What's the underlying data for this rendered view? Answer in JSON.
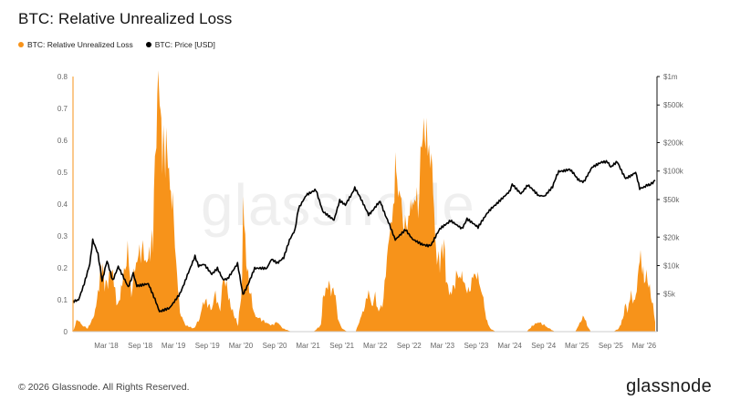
{
  "page": {
    "title": "BTC: Relative Unrealized Loss",
    "copyright": "© 2026 Glassnode. All Rights Reserved.",
    "brand": "glassnode",
    "watermark": "glassnode"
  },
  "colors": {
    "loss": "#f7931a",
    "price": "#000000",
    "axis": "#666666",
    "grid": "#e6e6e6"
  },
  "chart_data": {
    "type": "area",
    "title": "BTC: Relative Unrealized Loss",
    "legend_position": "top-left",
    "series": [
      {
        "name": "BTC: Relative Unrealized Loss",
        "axis": "left",
        "style": "area",
        "color": "#f7931a",
        "points": [
          [
            "2017-09-01",
            0.0
          ],
          [
            "2017-09-25",
            0.04
          ],
          [
            "2017-10-20",
            0.02
          ],
          [
            "2017-11-20",
            0.01
          ],
          [
            "2017-12-25",
            0.05
          ],
          [
            "2018-01-15",
            0.12
          ],
          [
            "2018-02-05",
            0.22
          ],
          [
            "2018-02-20",
            0.14
          ],
          [
            "2018-03-10",
            0.16
          ],
          [
            "2018-04-05",
            0.2
          ],
          [
            "2018-04-25",
            0.08
          ],
          [
            "2018-05-15",
            0.11
          ],
          [
            "2018-06-05",
            0.19
          ],
          [
            "2018-06-25",
            0.25
          ],
          [
            "2018-07-15",
            0.12
          ],
          [
            "2018-08-10",
            0.22
          ],
          [
            "2018-09-10",
            0.26
          ],
          [
            "2018-10-05",
            0.22
          ],
          [
            "2018-10-20",
            0.24
          ],
          [
            "2018-11-10",
            0.3
          ],
          [
            "2018-11-20",
            0.52
          ],
          [
            "2018-11-28",
            0.66
          ],
          [
            "2018-12-08",
            0.75
          ],
          [
            "2018-12-16",
            0.72
          ],
          [
            "2018-12-25",
            0.62
          ],
          [
            "2019-01-10",
            0.56
          ],
          [
            "2019-01-25",
            0.58
          ],
          [
            "2019-02-10",
            0.45
          ],
          [
            "2019-02-25",
            0.4
          ],
          [
            "2019-03-15",
            0.22
          ],
          [
            "2019-04-05",
            0.06
          ],
          [
            "2019-05-05",
            0.02
          ],
          [
            "2019-06-20",
            0.01
          ],
          [
            "2019-07-20",
            0.04
          ],
          [
            "2019-08-15",
            0.1
          ],
          [
            "2019-09-25",
            0.07
          ],
          [
            "2019-10-15",
            0.12
          ],
          [
            "2019-11-10",
            0.06
          ],
          [
            "2019-11-25",
            0.18
          ],
          [
            "2019-12-15",
            0.14
          ],
          [
            "2020-01-05",
            0.08
          ],
          [
            "2020-02-15",
            0.02
          ],
          [
            "2020-03-08",
            0.15
          ],
          [
            "2020-03-13",
            0.47
          ],
          [
            "2020-03-25",
            0.26
          ],
          [
            "2020-04-15",
            0.14
          ],
          [
            "2020-05-15",
            0.05
          ],
          [
            "2020-06-15",
            0.04
          ],
          [
            "2020-07-10",
            0.03
          ],
          [
            "2020-08-15",
            0.02
          ],
          [
            "2020-09-15",
            0.03
          ],
          [
            "2020-10-15",
            0.01
          ],
          [
            "2020-12-01",
            0.0
          ],
          [
            "2021-04-01",
            0.0
          ],
          [
            "2021-05-10",
            0.02
          ],
          [
            "2021-05-20",
            0.1
          ],
          [
            "2021-06-05",
            0.13
          ],
          [
            "2021-06-22",
            0.15
          ],
          [
            "2021-07-10",
            0.12
          ],
          [
            "2021-07-22",
            0.14
          ],
          [
            "2021-08-10",
            0.04
          ],
          [
            "2021-09-01",
            0.01
          ],
          [
            "2021-10-01",
            0.0
          ],
          [
            "2021-11-15",
            0.0
          ],
          [
            "2021-12-10",
            0.04
          ],
          [
            "2022-01-10",
            0.09
          ],
          [
            "2022-01-24",
            0.13
          ],
          [
            "2022-02-10",
            0.08
          ],
          [
            "2022-03-01",
            0.11
          ],
          [
            "2022-03-20",
            0.06
          ],
          [
            "2022-04-15",
            0.1
          ],
          [
            "2022-05-10",
            0.28
          ],
          [
            "2022-05-25",
            0.32
          ],
          [
            "2022-06-13",
            0.44
          ],
          [
            "2022-06-18",
            0.54
          ],
          [
            "2022-06-28",
            0.46
          ],
          [
            "2022-07-15",
            0.42
          ],
          [
            "2022-08-10",
            0.32
          ],
          [
            "2022-09-10",
            0.38
          ],
          [
            "2022-09-25",
            0.42
          ],
          [
            "2022-10-20",
            0.4
          ],
          [
            "2022-11-09",
            0.58
          ],
          [
            "2022-11-20",
            0.65
          ],
          [
            "2022-12-05",
            0.58
          ],
          [
            "2022-12-25",
            0.58
          ],
          [
            "2023-01-10",
            0.46
          ],
          [
            "2023-01-25",
            0.24
          ],
          [
            "2023-02-15",
            0.22
          ],
          [
            "2023-03-10",
            0.28
          ],
          [
            "2023-03-25",
            0.14
          ],
          [
            "2023-04-20",
            0.12
          ],
          [
            "2023-05-15",
            0.17
          ],
          [
            "2023-06-10",
            0.18
          ],
          [
            "2023-07-01",
            0.15
          ],
          [
            "2023-07-20",
            0.12
          ],
          [
            "2023-08-20",
            0.18
          ],
          [
            "2023-09-10",
            0.17
          ],
          [
            "2023-10-10",
            0.1
          ],
          [
            "2023-10-25",
            0.04
          ],
          [
            "2023-11-15",
            0.01
          ],
          [
            "2023-12-15",
            0.0
          ],
          [
            "2024-06-01",
            0.0
          ],
          [
            "2024-07-05",
            0.02
          ],
          [
            "2024-08-05",
            0.03
          ],
          [
            "2024-09-05",
            0.02
          ],
          [
            "2024-10-01",
            0.01
          ],
          [
            "2024-11-01",
            0.0
          ],
          [
            "2025-02-20",
            0.0
          ],
          [
            "2025-03-10",
            0.02
          ],
          [
            "2025-04-08",
            0.05
          ],
          [
            "2025-04-25",
            0.02
          ],
          [
            "2025-05-15",
            0.0
          ],
          [
            "2025-09-15",
            0.0
          ],
          [
            "2025-10-15",
            0.01
          ],
          [
            "2025-11-05",
            0.04
          ],
          [
            "2025-11-21",
            0.09
          ],
          [
            "2025-12-01",
            0.06
          ],
          [
            "2025-12-15",
            0.12
          ],
          [
            "2026-01-05",
            0.09
          ],
          [
            "2026-01-20",
            0.13
          ],
          [
            "2026-02-05",
            0.24
          ],
          [
            "2026-02-20",
            0.2
          ],
          [
            "2026-03-01",
            0.16
          ],
          [
            "2026-03-20",
            0.17
          ],
          [
            "2026-04-01",
            0.13
          ],
          [
            "2026-04-18",
            0.08
          ],
          [
            "2026-04-30",
            0.03
          ]
        ]
      },
      {
        "name": "BTC: Price [USD]",
        "axis": "right",
        "style": "line",
        "color": "#000000",
        "points": [
          [
            "2017-09-01",
            4200
          ],
          [
            "2017-10-01",
            4400
          ],
          [
            "2017-11-01",
            6500
          ],
          [
            "2017-12-01",
            10500
          ],
          [
            "2017-12-17",
            18500
          ],
          [
            "2018-01-15",
            13000
          ],
          [
            "2018-02-06",
            7000
          ],
          [
            "2018-03-05",
            11000
          ],
          [
            "2018-04-05",
            6800
          ],
          [
            "2018-05-05",
            9600
          ],
          [
            "2018-06-28",
            5900
          ],
          [
            "2018-07-25",
            8300
          ],
          [
            "2018-08-14",
            6200
          ],
          [
            "2018-10-15",
            6500
          ],
          [
            "2018-11-20",
            4500
          ],
          [
            "2018-12-15",
            3300
          ],
          [
            "2019-02-08",
            3600
          ],
          [
            "2019-04-05",
            5000
          ],
          [
            "2019-05-15",
            8000
          ],
          [
            "2019-06-26",
            12500
          ],
          [
            "2019-07-15",
            10000
          ],
          [
            "2019-08-15",
            10500
          ],
          [
            "2019-09-25",
            8000
          ],
          [
            "2019-10-26",
            9300
          ],
          [
            "2019-11-25",
            7000
          ],
          [
            "2019-12-20",
            7200
          ],
          [
            "2020-02-12",
            10300
          ],
          [
            "2020-03-12",
            4900
          ],
          [
            "2020-04-15",
            6800
          ],
          [
            "2020-05-15",
            9400
          ],
          [
            "2020-07-20",
            9200
          ],
          [
            "2020-08-15",
            11800
          ],
          [
            "2020-09-15",
            10800
          ],
          [
            "2020-10-20",
            12000
          ],
          [
            "2020-11-20",
            18500
          ],
          [
            "2020-12-20",
            23500
          ],
          [
            "2021-01-08",
            40000
          ],
          [
            "2021-02-20",
            56000
          ],
          [
            "2021-03-15",
            58000
          ],
          [
            "2021-04-13",
            63000
          ],
          [
            "2021-05-20",
            37000
          ],
          [
            "2021-07-20",
            30000
          ],
          [
            "2021-08-20",
            48000
          ],
          [
            "2021-09-20",
            43000
          ],
          [
            "2021-11-10",
            67000
          ],
          [
            "2021-12-20",
            47000
          ],
          [
            "2022-01-24",
            35000
          ],
          [
            "2022-03-28",
            47000
          ],
          [
            "2022-05-12",
            29000
          ],
          [
            "2022-06-18",
            19000
          ],
          [
            "2022-08-13",
            24500
          ],
          [
            "2022-09-20",
            19000
          ],
          [
            "2022-11-09",
            16500
          ],
          [
            "2022-12-30",
            16600
          ],
          [
            "2023-02-15",
            24000
          ],
          [
            "2023-04-14",
            30500
          ],
          [
            "2023-06-15",
            25000
          ],
          [
            "2023-07-13",
            31000
          ],
          [
            "2023-09-11",
            25000
          ],
          [
            "2023-10-25",
            34500
          ],
          [
            "2023-12-10",
            43000
          ],
          [
            "2024-02-28",
            60000
          ],
          [
            "2024-03-14",
            73000
          ],
          [
            "2024-05-01",
            57000
          ],
          [
            "2024-06-07",
            71000
          ],
          [
            "2024-08-05",
            54000
          ],
          [
            "2024-09-06",
            53500
          ],
          [
            "2024-10-20",
            69000
          ],
          [
            "2024-11-22",
            99000
          ],
          [
            "2025-01-20",
            106000
          ],
          [
            "2025-02-28",
            84000
          ],
          [
            "2025-04-08",
            76500
          ],
          [
            "2025-05-22",
            111000
          ],
          [
            "2025-07-14",
            122000
          ],
          [
            "2025-08-14",
            124000
          ],
          [
            "2025-09-01",
            108000
          ],
          [
            "2025-10-06",
            125000
          ],
          [
            "2025-11-21",
            84000
          ],
          [
            "2025-12-20",
            88000
          ],
          [
            "2026-01-14",
            96000
          ],
          [
            "2026-02-05",
            65000
          ],
          [
            "2026-03-01",
            68000
          ],
          [
            "2026-03-20",
            71000
          ],
          [
            "2026-04-10",
            74000
          ],
          [
            "2026-04-30",
            80000
          ]
        ]
      }
    ],
    "left_axis": {
      "min": 0,
      "max": 0.8,
      "ticks": [
        "0",
        "0.1",
        "0.2",
        "0.3",
        "0.4",
        "0.5",
        "0.6",
        "0.7",
        "0.8"
      ]
    },
    "right_axis": {
      "scale": "log",
      "ticks": [
        {
          "value": 5000,
          "label": "$5k"
        },
        {
          "value": 10000,
          "label": "$10k"
        },
        {
          "value": 20000,
          "label": "$20k"
        },
        {
          "value": 50000,
          "label": "$50k"
        },
        {
          "value": 100000,
          "label": "$100k"
        },
        {
          "value": 200000,
          "label": "$200k"
        },
        {
          "value": 500000,
          "label": "$500k"
        },
        {
          "value": 1000000,
          "label": "$1m"
        }
      ]
    },
    "x_axis": {
      "range": [
        "2017-09-01",
        "2026-05-10"
      ],
      "ticks": [
        {
          "date": "2018-03-01",
          "label": "Mar '18"
        },
        {
          "date": "2018-09-01",
          "label": "Sep '18"
        },
        {
          "date": "2019-03-01",
          "label": "Mar '19"
        },
        {
          "date": "2019-09-01",
          "label": "Sep '19"
        },
        {
          "date": "2020-03-01",
          "label": "Mar '20"
        },
        {
          "date": "2020-09-01",
          "label": "Sep '20"
        },
        {
          "date": "2021-03-01",
          "label": "Mar '21"
        },
        {
          "date": "2021-09-01",
          "label": "Sep '21"
        },
        {
          "date": "2022-03-01",
          "label": "Mar '22"
        },
        {
          "date": "2022-09-01",
          "label": "Sep '22"
        },
        {
          "date": "2023-03-01",
          "label": "Mar '23"
        },
        {
          "date": "2023-09-01",
          "label": "Sep '23"
        },
        {
          "date": "2024-03-01",
          "label": "Mar '24"
        },
        {
          "date": "2024-09-01",
          "label": "Sep '24"
        },
        {
          "date": "2025-03-01",
          "label": "Mar '25"
        },
        {
          "date": "2025-09-01",
          "label": "Sep '25"
        },
        {
          "date": "2026-03-01",
          "label": "Mar '26"
        }
      ]
    },
    "grid": false
  }
}
